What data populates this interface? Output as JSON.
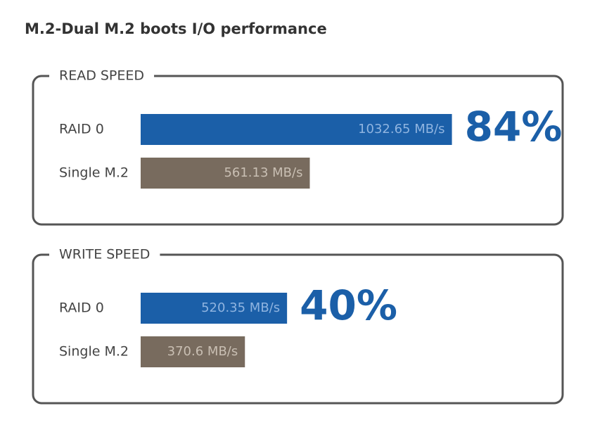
{
  "title": "M.2-Dual M.2 boots I/O performance",
  "chart_data": [
    {
      "type": "bar",
      "orientation": "horizontal",
      "title": "READ SPEED",
      "categories": [
        "RAID 0",
        "Single M.2"
      ],
      "values": [
        1032.65,
        561.13
      ],
      "value_labels": [
        "1032.65 MB/s",
        "561.13 MB/s"
      ],
      "colors": [
        "#1b5fa8",
        "#786b5e"
      ],
      "xlim": [
        0,
        1400
      ],
      "annotation": "84%"
    },
    {
      "type": "bar",
      "orientation": "horizontal",
      "title": "WRITE SPEED",
      "categories": [
        "RAID 0",
        "Single M.2"
      ],
      "values": [
        520.35,
        370.6
      ],
      "value_labels": [
        "520.35 MB/s",
        "370.6 MB/s"
      ],
      "colors": [
        "#1b5fa8",
        "#786b5e"
      ],
      "xlim": [
        0,
        1500
      ],
      "annotation": "40%"
    }
  ]
}
